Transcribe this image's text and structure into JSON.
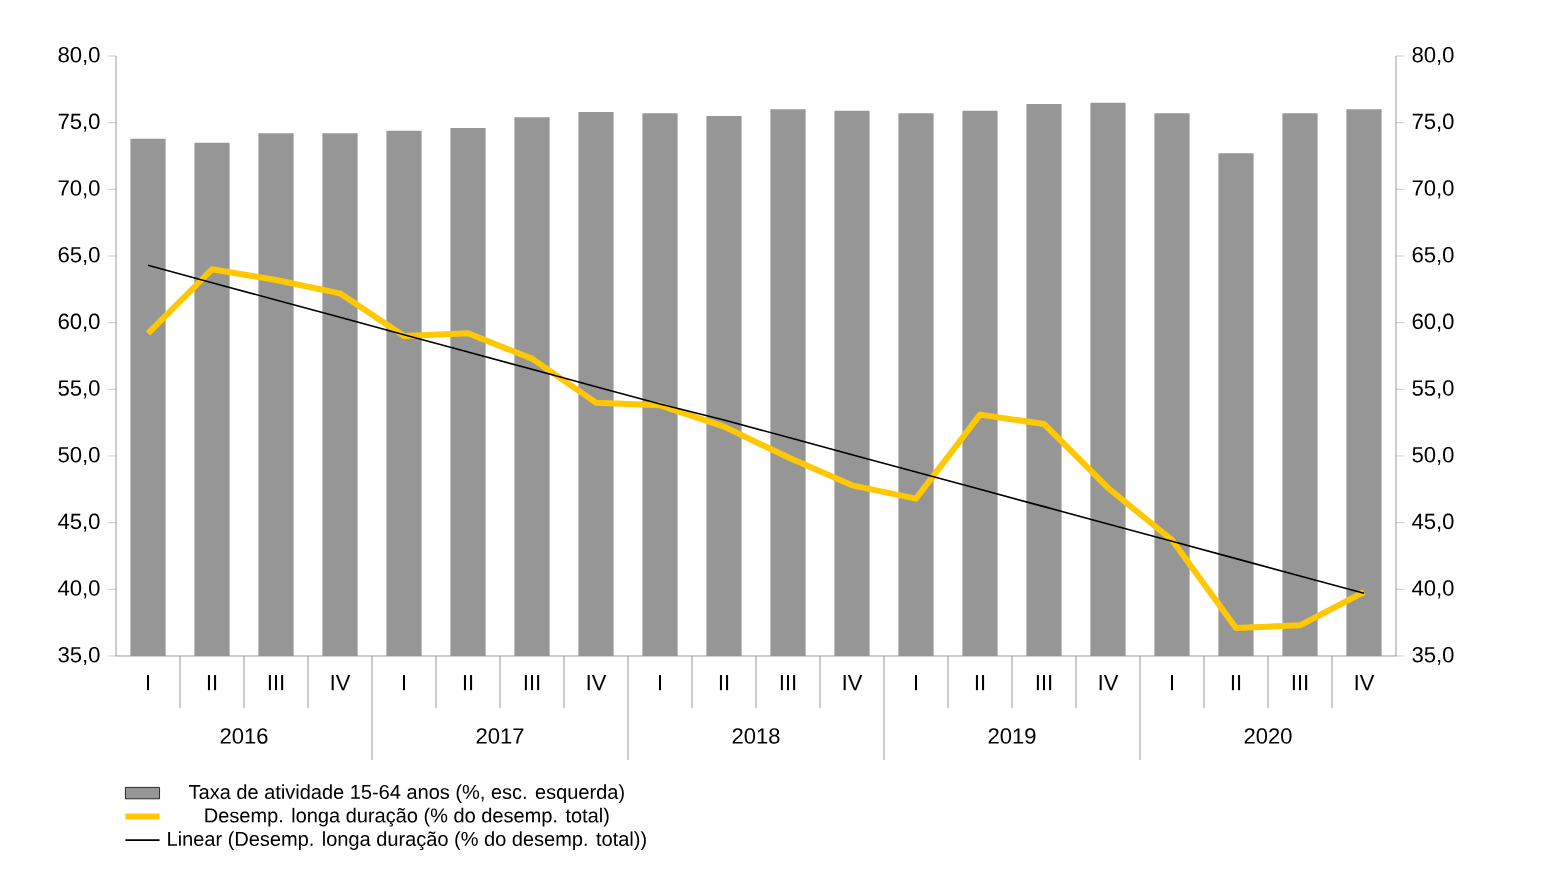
{
  "chart_data": {
    "type": "bar",
    "categories": [
      "I",
      "II",
      "III",
      "IV",
      "I",
      "II",
      "III",
      "IV",
      "I",
      "II",
      "III",
      "IV",
      "I",
      "II",
      "III",
      "IV",
      "I",
      "II",
      "III",
      "IV"
    ],
    "annotations": [
      "2016",
      "2017",
      "2018",
      "2019",
      "2020"
    ],
    "ylim": [
      35,
      80
    ],
    "yticks": [
      {
        "value": 35,
        "label": "35,0"
      },
      {
        "value": 40,
        "label": "40,0"
      },
      {
        "value": 45,
        "label": "45,0"
      },
      {
        "value": 50,
        "label": "50,0"
      },
      {
        "value": 55,
        "label": "55,0"
      },
      {
        "value": 60,
        "label": "60,0"
      },
      {
        "value": 65,
        "label": "65,0"
      },
      {
        "value": 70,
        "label": "70,0"
      },
      {
        "value": 75,
        "label": "75,0"
      },
      {
        "value": 80,
        "label": "80,0"
      }
    ],
    "y2lim": [
      35,
      80
    ],
    "y2ticks": [
      {
        "value": 35,
        "label": "35,0"
      },
      {
        "value": 40,
        "label": "40,0"
      },
      {
        "value": 45,
        "label": "45,0"
      },
      {
        "value": 50,
        "label": "50,0"
      },
      {
        "value": 55,
        "label": "55,0"
      },
      {
        "value": 60,
        "label": "60,0"
      },
      {
        "value": 65,
        "label": "65,0"
      },
      {
        "value": 70,
        "label": "70,0"
      },
      {
        "value": 75,
        "label": "75,0"
      },
      {
        "value": 80,
        "label": "80,0"
      }
    ],
    "legend": "bottom",
    "series": [
      {
        "name": "Taxa de atividade 15-64 anos (%, esc. esquerda)",
        "color": "#969696",
        "values": [
          73.8,
          73.5,
          74.2,
          74.2,
          74.4,
          74.6,
          75.4,
          75.8,
          75.7,
          75.5,
          76.0,
          75.9,
          75.7,
          75.9,
          76.4,
          76.5,
          75.7,
          72.7,
          75.7,
          76.0
        ]
      },
      {
        "name": "Desemp. longa duração (% do desemp. total)",
        "type": "line",
        "axis": "y2",
        "color": "#ffc800",
        "values": [
          59.2,
          64.0,
          63.2,
          62.2,
          59.0,
          59.2,
          57.3,
          54.0,
          53.8,
          52.2,
          49.9,
          47.8,
          46.8,
          53.1,
          52.4,
          47.6,
          43.7,
          37.1,
          37.3,
          39.8
        ]
      },
      {
        "name": "Linear (Desemp. longa duração (% do desemp. total))",
        "type": "line",
        "axis": "y2",
        "color": "#000000",
        "values": [
          64.3,
          63.0,
          61.7,
          60.4,
          59.1,
          57.8,
          56.5,
          55.2,
          53.9,
          52.7,
          51.4,
          50.1,
          48.8,
          47.5,
          46.2,
          44.9,
          43.6,
          42.3,
          41.0,
          39.7
        ]
      }
    ]
  }
}
